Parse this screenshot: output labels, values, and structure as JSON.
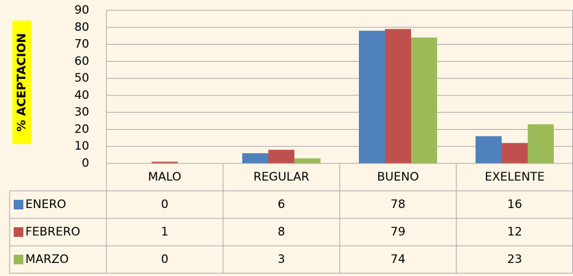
{
  "chart_data": {
    "type": "bar",
    "y_label": "% ACEPTACION",
    "categories": [
      "MALO",
      "REGULAR",
      "BUENO",
      "EXELENTE"
    ],
    "series": [
      {
        "name": "ENERO",
        "color": "#4f81bd",
        "values": [
          0,
          6,
          78,
          16
        ]
      },
      {
        "name": "FEBRERO",
        "color": "#c0504d",
        "values": [
          1,
          8,
          79,
          12
        ]
      },
      {
        "name": "MARZO",
        "color": "#9bbb59",
        "values": [
          0,
          3,
          74,
          23
        ]
      }
    ],
    "ylim": [
      0,
      90
    ],
    "yticks": [
      0,
      10,
      20,
      30,
      40,
      50,
      60,
      70,
      80,
      90
    ],
    "grid": true
  }
}
